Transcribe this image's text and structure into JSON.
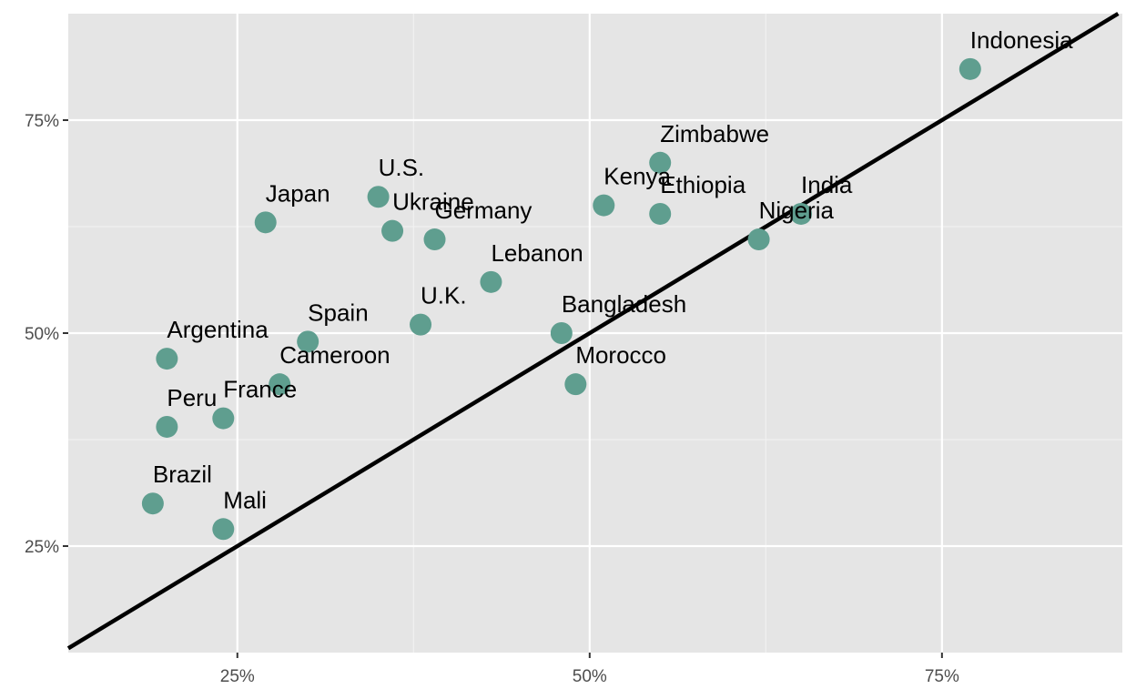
{
  "chart_data": {
    "type": "scatter",
    "title": "",
    "xlabel": "",
    "ylabel": "",
    "xlim": [
      0.13,
      0.878
    ],
    "ylim": [
      0.125,
      0.875
    ],
    "x_ticks": [
      0.25,
      0.5,
      0.75
    ],
    "y_ticks": [
      0.25,
      0.5,
      0.75
    ],
    "x_tick_labels": [
      "25%",
      "50%",
      "75%"
    ],
    "y_tick_labels": [
      "25%",
      "50%",
      "75%"
    ],
    "x_minor": [
      0.375,
      0.625
    ],
    "y_minor": [
      0.375,
      0.625
    ],
    "grid": true,
    "reference_line": {
      "slope": 1,
      "intercept": 0
    },
    "point_color": "#5f9e8f",
    "panel_color": "#e5e5e5",
    "points": [
      {
        "label": "Indonesia",
        "x": 0.77,
        "y": 0.81
      },
      {
        "label": "Zimbabwe",
        "x": 0.55,
        "y": 0.7
      },
      {
        "label": "U.S.",
        "x": 0.35,
        "y": 0.66
      },
      {
        "label": "Kenya",
        "x": 0.51,
        "y": 0.65
      },
      {
        "label": "Ethiopia",
        "x": 0.55,
        "y": 0.64
      },
      {
        "label": "India",
        "x": 0.65,
        "y": 0.64
      },
      {
        "label": "Japan",
        "x": 0.27,
        "y": 0.63
      },
      {
        "label": "Ukraine",
        "x": 0.36,
        "y": 0.62
      },
      {
        "label": "Germany",
        "x": 0.39,
        "y": 0.61
      },
      {
        "label": "Nigeria",
        "x": 0.62,
        "y": 0.61
      },
      {
        "label": "Lebanon",
        "x": 0.43,
        "y": 0.56
      },
      {
        "label": "U.K.",
        "x": 0.38,
        "y": 0.51
      },
      {
        "label": "Bangladesh",
        "x": 0.48,
        "y": 0.5
      },
      {
        "label": "Spain",
        "x": 0.3,
        "y": 0.49
      },
      {
        "label": "Argentina",
        "x": 0.2,
        "y": 0.47
      },
      {
        "label": "Cameroon",
        "x": 0.28,
        "y": 0.44
      },
      {
        "label": "Morocco",
        "x": 0.49,
        "y": 0.44
      },
      {
        "label": "France",
        "x": 0.24,
        "y": 0.4
      },
      {
        "label": "Peru",
        "x": 0.2,
        "y": 0.39
      },
      {
        "label": "Brazil",
        "x": 0.19,
        "y": 0.3
      },
      {
        "label": "Mali",
        "x": 0.24,
        "y": 0.27
      }
    ]
  }
}
